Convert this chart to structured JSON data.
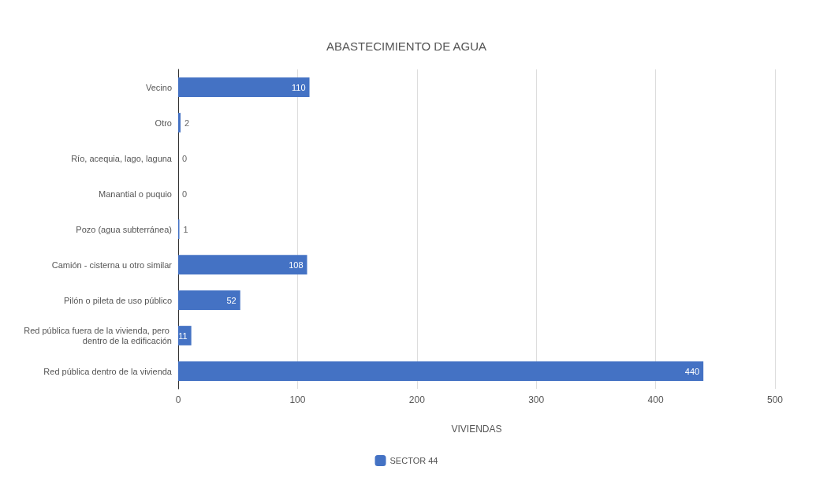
{
  "chart_data": {
    "type": "bar",
    "orientation": "horizontal",
    "title": "ABASTECIMIENTO DE AGUA",
    "xlabel": "VIVIENDAS",
    "categories": [
      "Vecino",
      "Otro",
      "Río, acequia, lago, laguna",
      "Manantial o puquio",
      "Pozo (agua subterránea)",
      "Camión - cisterna u otro similar",
      "Pilón o pileta de uso público",
      "Red pública fuera de la vivienda, pero dentro de la edificación",
      "Red pública dentro de la vivienda"
    ],
    "series": [
      {
        "name": "SECTOR 44",
        "color": "#4472c4",
        "values": [
          110,
          2,
          0,
          0,
          1,
          108,
          52,
          11,
          440
        ]
      }
    ],
    "xlim": [
      0,
      500
    ],
    "xticks": [
      0,
      100,
      200,
      300,
      400,
      500
    ],
    "grid": "x",
    "legend": "bottom",
    "data_labels": true
  }
}
